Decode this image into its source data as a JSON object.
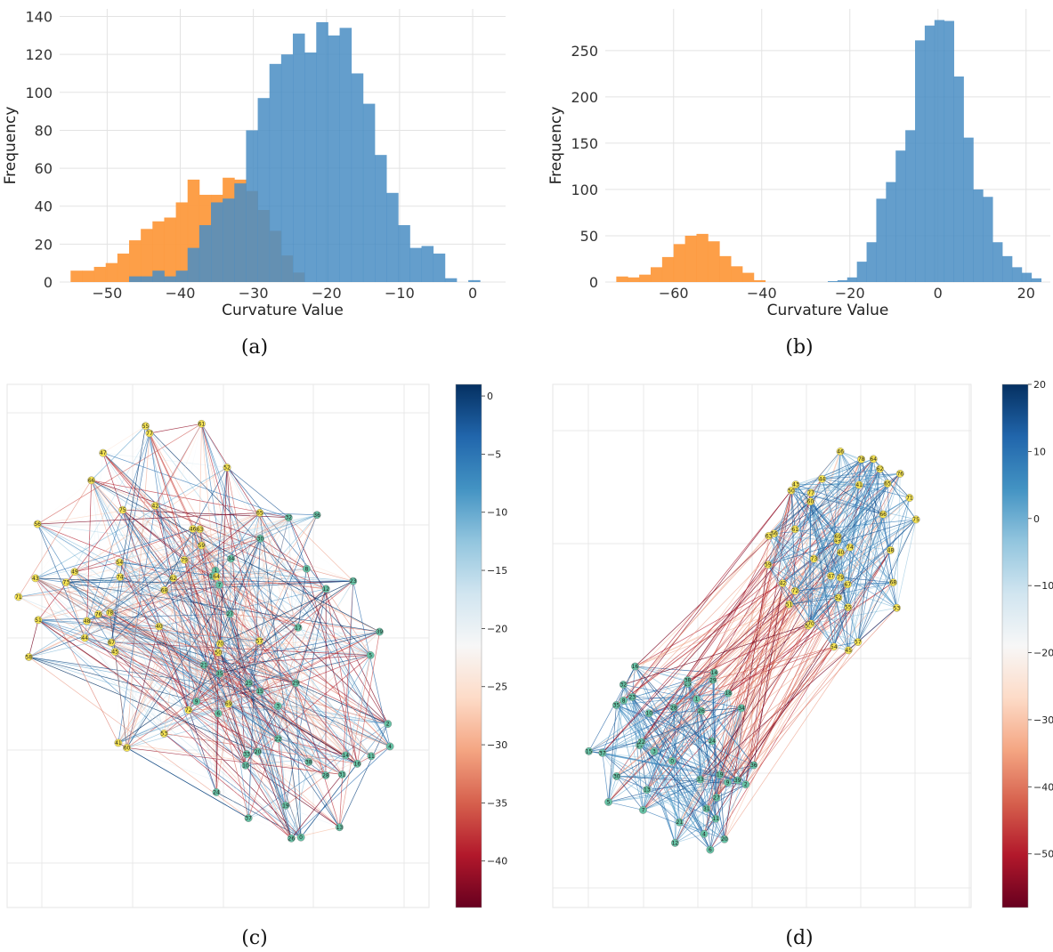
{
  "colors": {
    "blue": "#4a8ec4",
    "orange": "#fd9a3e",
    "overlap": "#5a7893",
    "node_green": "#66c2a5",
    "node_yellow": "#f7e553",
    "grid": "#e3e3e3"
  },
  "captions": [
    "(a)",
    "(b)",
    "(c)",
    "(d)"
  ],
  "chart_data": [
    {
      "type": "histogram",
      "panel": "(a)",
      "xlabel": "Curvature Value",
      "ylabel": "Frequency",
      "xlim": [
        -56.5,
        4.5
      ],
      "ylim": [
        0,
        144
      ],
      "xticks": [
        -50,
        -40,
        -30,
        -20,
        -10,
        0
      ],
      "xticklabels": [
        "−50",
        "−40",
        "−30",
        "−20",
        "−10",
        "0"
      ],
      "yticks": [
        0,
        20,
        40,
        60,
        80,
        100,
        120,
        140
      ],
      "grid": true,
      "series": [
        {
          "color": "orange",
          "bins": [
            -55,
            -53.4,
            -51.8,
            -50.2,
            -48.6,
            -47,
            -45.4,
            -43.8,
            -42.2,
            -40.6,
            -39,
            -37.4,
            -35.8,
            -34.2,
            -32.6,
            -31,
            -29.4,
            -27.8,
            -26.2,
            -24.6,
            -23
          ],
          "counts": [
            6,
            6,
            8,
            10,
            15,
            22,
            28,
            32,
            34,
            42,
            54,
            46,
            46,
            55,
            54,
            48,
            38,
            27,
            14,
            5
          ]
        },
        {
          "color": "blue",
          "bins": [
            -47,
            -45.4,
            -43.8,
            -42.2,
            -40.6,
            -39,
            -37.4,
            -35.8,
            -34.2,
            -32.6,
            -31,
            -29.4,
            -27.8,
            -26.2,
            -24.6,
            -23,
            -21.4,
            -19.8,
            -18.2,
            -16.6,
            -15,
            -13.4,
            -11.8,
            -10.2,
            -8.6,
            -7,
            -5.4,
            -3.8,
            -2.2,
            -0.6,
            1,
            2.6
          ],
          "counts": [
            3,
            3,
            6,
            3,
            6,
            18,
            30,
            42,
            44,
            52,
            80,
            97,
            115,
            120,
            131,
            121,
            137,
            130,
            134,
            110,
            94,
            67,
            47,
            30,
            18,
            19,
            15,
            2,
            0,
            1,
            0
          ]
        }
      ]
    },
    {
      "type": "histogram",
      "panel": "(b)",
      "xlabel": "Curvature Value",
      "ylabel": "Frequency",
      "xlim": [
        -75.5,
        25.5
      ],
      "ylim": [
        0,
        295
      ],
      "xticks": [
        -60,
        -40,
        -20,
        0,
        20
      ],
      "xticklabels": [
        "−60",
        "−40",
        "−20",
        "0",
        "20"
      ],
      "yticks": [
        0,
        50,
        100,
        150,
        200,
        250
      ],
      "grid": true,
      "series": [
        {
          "color": "orange",
          "bins": [
            -73,
            -70.4,
            -67.8,
            -65.2,
            -62.6,
            -60,
            -57.4,
            -54.8,
            -52.2,
            -49.6,
            -47,
            -44.4,
            -41.8,
            -39.2
          ],
          "counts": [
            6,
            5,
            8,
            16,
            27,
            41,
            50,
            52,
            44,
            28,
            17,
            10,
            2
          ]
        },
        {
          "color": "blue",
          "bins": [
            -25,
            -22.8,
            -20.6,
            -18.4,
            -16.2,
            -14,
            -11.8,
            -9.6,
            -7.4,
            -5.2,
            -3,
            -0.8,
            1.4,
            3.6,
            5.8,
            8,
            10.2,
            12.4,
            14.6,
            16.8,
            19,
            21.2,
            23.4
          ],
          "counts": [
            1,
            2,
            5,
            22,
            43,
            90,
            108,
            142,
            164,
            261,
            277,
            283,
            282,
            222,
            156,
            100,
            92,
            43,
            28,
            16,
            10,
            4
          ]
        }
      ]
    },
    {
      "type": "network",
      "panel": "(c)",
      "colorbar": {
        "range": [
          -44,
          1
        ],
        "ticks": [
          0,
          -5,
          -10,
          -15,
          -20,
          -25,
          -30,
          -35,
          -40
        ],
        "ticklabels": [
          "0",
          "−5",
          "−10",
          "−15",
          "−20",
          "−25",
          "−30",
          "−35",
          "−40"
        ]
      },
      "group_green": [
        "0",
        "1",
        "2",
        "3",
        "4",
        "5",
        "6",
        "7",
        "8",
        "9",
        "10",
        "11",
        "12",
        "13",
        "14",
        "15",
        "16",
        "17",
        "18",
        "19",
        "20",
        "21",
        "22",
        "23",
        "24",
        "25",
        "26",
        "27",
        "28",
        "29",
        "30",
        "31",
        "32",
        "33",
        "34",
        "35",
        "36",
        "37",
        "38",
        "39"
      ],
      "group_yellow": [
        "40",
        "41",
        "42",
        "43",
        "44",
        "45",
        "46",
        "47",
        "48",
        "49",
        "50",
        "51",
        "52",
        "53",
        "54",
        "55",
        "56",
        "57",
        "58",
        "59",
        "60",
        "61",
        "62",
        "63",
        "64",
        "65",
        "66",
        "67",
        "68",
        "69",
        "70",
        "71",
        "72",
        "73",
        "74",
        "75",
        "76",
        "77",
        "78",
        "79"
      ]
    },
    {
      "type": "network",
      "panel": "(d)",
      "colorbar": {
        "range": [
          -58,
          20
        ],
        "ticks": [
          20,
          10,
          0,
          -10,
          -20,
          -30,
          -40,
          -50
        ],
        "ticklabels": [
          "20",
          "10",
          "0",
          "−10",
          "−20",
          "−30",
          "−40",
          "−50"
        ]
      },
      "group_green": [
        "0",
        "1",
        "2",
        "3",
        "4",
        "5",
        "6",
        "7",
        "8",
        "9",
        "10",
        "11",
        "12",
        "13",
        "14",
        "15",
        "16",
        "17",
        "18",
        "19",
        "20",
        "21",
        "22",
        "23",
        "24",
        "25",
        "26",
        "27",
        "28",
        "29",
        "30",
        "31",
        "32",
        "33",
        "34",
        "35",
        "36",
        "37",
        "38",
        "39"
      ],
      "group_yellow": [
        "40",
        "41",
        "42",
        "43",
        "44",
        "45",
        "46",
        "47",
        "48",
        "49",
        "50",
        "51",
        "52",
        "53",
        "54",
        "55",
        "56",
        "57",
        "58",
        "59",
        "60",
        "61",
        "62",
        "63",
        "64",
        "65",
        "66",
        "67",
        "68",
        "69",
        "70",
        "71",
        "72",
        "73",
        "74",
        "75",
        "76",
        "77",
        "78",
        "79"
      ]
    }
  ]
}
